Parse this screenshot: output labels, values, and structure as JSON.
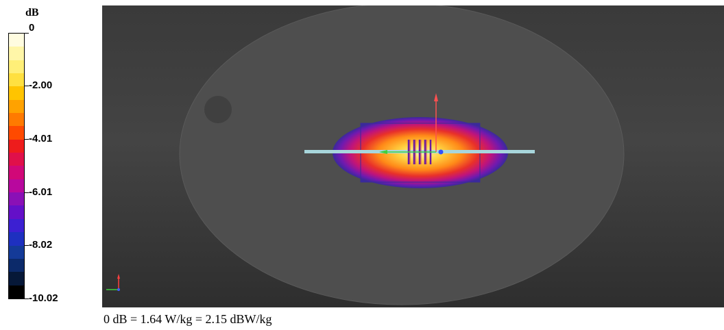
{
  "legend": {
    "unit": "dB",
    "labels": [
      "0",
      "-2.00",
      "-4.01",
      "-6.01",
      "-8.02",
      "-10.02"
    ],
    "colors": [
      "#fffce0",
      "#fff6a8",
      "#ffef78",
      "#ffe040",
      "#ffc400",
      "#ffa200",
      "#ff7a00",
      "#ff4a00",
      "#ee1c1c",
      "#e0104a",
      "#d10878",
      "#b8089e",
      "#8a10b6",
      "#6410c8",
      "#3c20d2",
      "#1e30c0",
      "#143a98",
      "#0c2a6a",
      "#061838",
      "#000000"
    ]
  },
  "viewport": {
    "background": "#3c3c3c",
    "phantom_color": "#4e4e4e",
    "antenna_color": "#a8d6dc",
    "field_colors": [
      "#6c1aa8",
      "#c01070",
      "#e82a2a",
      "#ff7a10",
      "#ffc02a",
      "#fff0a0"
    ],
    "axes": {
      "x_color": "#40d040",
      "y_color": "#ff4040",
      "z_color": "#4060ff"
    }
  },
  "caption": "0 dB = 1.64 W/kg = 2.15 dBW/kg"
}
